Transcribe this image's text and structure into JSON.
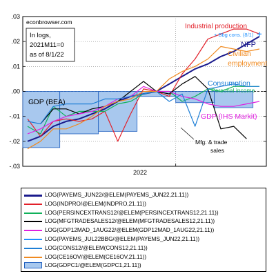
{
  "colors": {
    "nfp": "#1a1a8c",
    "industrial": "#e2202a",
    "personal_income": "#10b15a",
    "mfg_trade": "#000000",
    "ihs": "#e020e0",
    "bbg": "#1f8fff",
    "consumption": "#1f7fd6",
    "civilian": "#f08a20",
    "gdp_fill": "#a8c8ee",
    "gdp_edge": "#2060c0"
  },
  "chart_data": {
    "type": "line",
    "ylim": [
      -0.03,
      0.03
    ],
    "y_ticks": [
      ".03",
      ".02",
      ".01",
      ".00",
      "-.01",
      "-.02",
      "-.03"
    ],
    "x_tick_label": "2022",
    "x": [
      "2021-01",
      "2021-02",
      "2021-03",
      "2021-04",
      "2021-05",
      "2021-06",
      "2021-07",
      "2021-08",
      "2021-09",
      "2021-10",
      "2021-11",
      "2021-12",
      "2022-01",
      "2022-02",
      "2022-03",
      "2022-04",
      "2022-05",
      "2022-06",
      "2022-07"
    ],
    "series": [
      {
        "name": "NFP",
        "color_key": "nfp",
        "values": [
          -0.02,
          -0.018,
          -0.014,
          -0.012,
          -0.011,
          -0.009,
          -0.007,
          -0.004,
          -0.002,
          -0.001,
          0.0,
          0.003,
          0.006,
          0.009,
          0.011,
          0.014,
          0.016,
          0.019,
          0.022
        ]
      },
      {
        "name": "Industrial production",
        "color_key": "industrial",
        "values": [
          -0.011,
          -0.018,
          -0.012,
          -0.011,
          -0.012,
          -0.011,
          -0.008,
          -0.02,
          -0.009,
          0.001,
          0.0,
          -0.002,
          0.007,
          0.013,
          0.021,
          0.023,
          0.025,
          0.025,
          0.023
        ]
      },
      {
        "name": "Personal income",
        "color_key": "personal_income",
        "values": [
          -0.014,
          -0.017,
          -0.006,
          -0.01,
          -0.008,
          -0.008,
          -0.008,
          -0.005,
          -0.004,
          -0.001,
          0.0,
          0.0,
          -0.004,
          -0.002,
          0.001,
          0.0,
          0.002,
          0.002,
          0.002
        ]
      },
      {
        "name": "Mfg. & trade sales",
        "color_key": "mfg_trade",
        "values": [
          null,
          -0.013,
          -0.007,
          -0.007,
          -0.009,
          -0.007,
          -0.006,
          -0.004,
          0.0,
          0.004,
          0.0,
          -0.001,
          0.003,
          0.006,
          0.001,
          -0.015,
          -0.014,
          -0.019,
          null
        ]
      },
      {
        "name": "GDP (IHS Markit)",
        "color_key": "ihs",
        "values": [
          -0.017,
          -0.015,
          -0.012,
          -0.01,
          -0.009,
          -0.008,
          -0.006,
          -0.003,
          -0.002,
          0.002,
          0.0,
          0.0,
          -0.002,
          -0.003,
          -0.005,
          -0.006,
          -0.006,
          -0.005,
          -0.004
        ]
      },
      {
        "name": "Bbg cons. (8/1)",
        "color_key": "bbg",
        "values": [
          null,
          null,
          null,
          null,
          null,
          null,
          null,
          null,
          null,
          null,
          null,
          null,
          null,
          null,
          null,
          null,
          null,
          null,
          0.023
        ]
      },
      {
        "name": "Consumption",
        "color_key": "consumption",
        "values": [
          -0.012,
          -0.013,
          -0.006,
          -0.005,
          -0.005,
          -0.005,
          -0.003,
          -0.003,
          -0.002,
          -0.001,
          0.0,
          -0.004,
          -0.001,
          -0.014,
          0.001,
          0.002,
          0.003,
          0.002,
          0.002
        ]
      },
      {
        "name": "Civilian employment",
        "color_key": "civilian",
        "values": [
          -0.023,
          -0.02,
          -0.015,
          -0.015,
          -0.013,
          -0.01,
          -0.006,
          -0.004,
          -0.003,
          0.0,
          0.0,
          0.005,
          0.008,
          0.01,
          0.013,
          0.018,
          0.017,
          0.016,
          0.017
        ]
      }
    ],
    "gdp_bars": [
      {
        "quarter": "2021Q1",
        "start": 0,
        "end": 3,
        "value": -0.0225
      },
      {
        "quarter": "2021Q2",
        "start": 3,
        "end": 6,
        "value": -0.017
      },
      {
        "quarter": "2021Q3",
        "start": 6,
        "end": 9,
        "value": -0.016
      },
      {
        "quarter": "2021Q4",
        "start": 9,
        "end": 12,
        "value": -0.002
      },
      {
        "quarter": "2022Q1",
        "start": 12,
        "end": 15,
        "value": -0.0045
      },
      {
        "quarter": "2022Q2",
        "start": 15,
        "end": 18,
        "value": -0.0065
      }
    ]
  },
  "annotations": {
    "site": "econbrowser.com",
    "note_lines": [
      "In logs,",
      "2021M11=0",
      "as of 8/1/22"
    ],
    "industrial_production": "Industrial production",
    "bbg_cons": "+ Bbg cons. (8/1)",
    "nfp": "NFP",
    "civilian_line1": "Civilian",
    "civilian_line2": "employment",
    "consumption": "Consumption",
    "personal_income": "Personal income",
    "gdp_bea": "GDP (BEA)",
    "gdp_ihs": "GDP (IHS Markit)",
    "mfg_line1": "Mfg. & trade",
    "mfg_line2": "sales"
  },
  "legend": [
    {
      "label": "LOG(PAYEMS_JUN22/@ELEM(PAYEMS_JUN22,21.11))",
      "color_key": "nfp",
      "kind": "line"
    },
    {
      "label": "LOG(INDPRO/@ELEM(INDPRO,21.11))",
      "color_key": "industrial",
      "kind": "line"
    },
    {
      "label": "LOG(PERSINCEXTRANS12/@ELEM(PERSINCEXTRANS12,21.11))",
      "color_key": "personal_income",
      "kind": "line"
    },
    {
      "label": "LOG(MFGTRADESALES12/@ELEM(MFGTRADESALES12,21.11))",
      "color_key": "mfg_trade",
      "kind": "line"
    },
    {
      "label": "LOG(GDP12MAD_1AUG22/@ELEM(GDP12MAD_1AUG22,21.11))",
      "color_key": "ihs",
      "kind": "line"
    },
    {
      "label": "LOG(PAYEMS_JUL22BBG/@ELEM(PAYEMS_JUN22,21.11))",
      "color_key": "bbg",
      "kind": "line"
    },
    {
      "label": "LOG(CONS12/@ELEM(CONS12,21.11))",
      "color_key": "consumption",
      "kind": "line"
    },
    {
      "label": "LOG(CE16OV/@ELEM(CE16OV,21.11))",
      "color_key": "civilian",
      "kind": "line"
    },
    {
      "label": "LOG(GDPC1/@ELEM(GDPC1,21.11))",
      "color_key": "gdp_fill",
      "kind": "box"
    }
  ]
}
